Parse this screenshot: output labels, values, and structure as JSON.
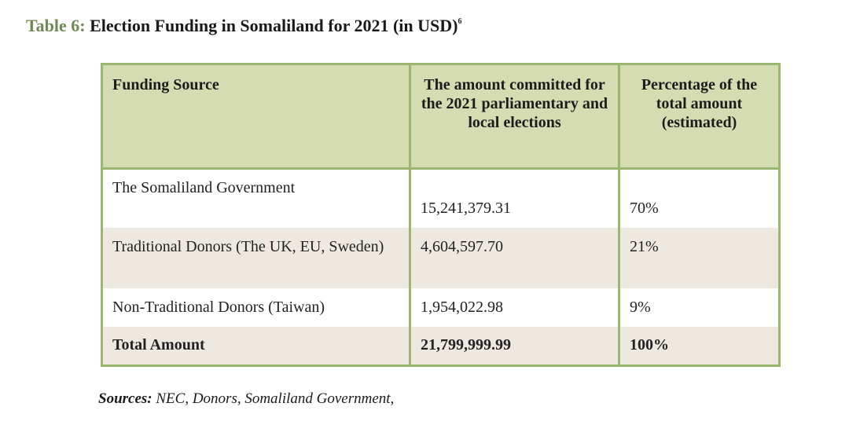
{
  "caption": {
    "label": "Table 6:",
    "title": "Election Funding in Somaliland for 2021 (in USD)",
    "footnote": "6"
  },
  "table": {
    "headers": [
      "Funding Source",
      "The amount committed for the 2021 parliamentary and local elections",
      "Percentage of the total amount (estimated)"
    ],
    "rows": [
      [
        "The Somaliland Government",
        "15,241,379.31",
        "70%"
      ],
      [
        "Traditional Donors (The UK, EU, Sweden)",
        "4,604,597.70",
        "21%"
      ],
      [
        "Non-Traditional Donors (Taiwan)",
        "1,954,022.98",
        "9%"
      ],
      [
        "Total Amount",
        "21,799,999.99",
        "100%"
      ]
    ]
  },
  "sources": {
    "label": "Sources:",
    "text": "NEC, Donors, Somaliland Government,"
  }
}
